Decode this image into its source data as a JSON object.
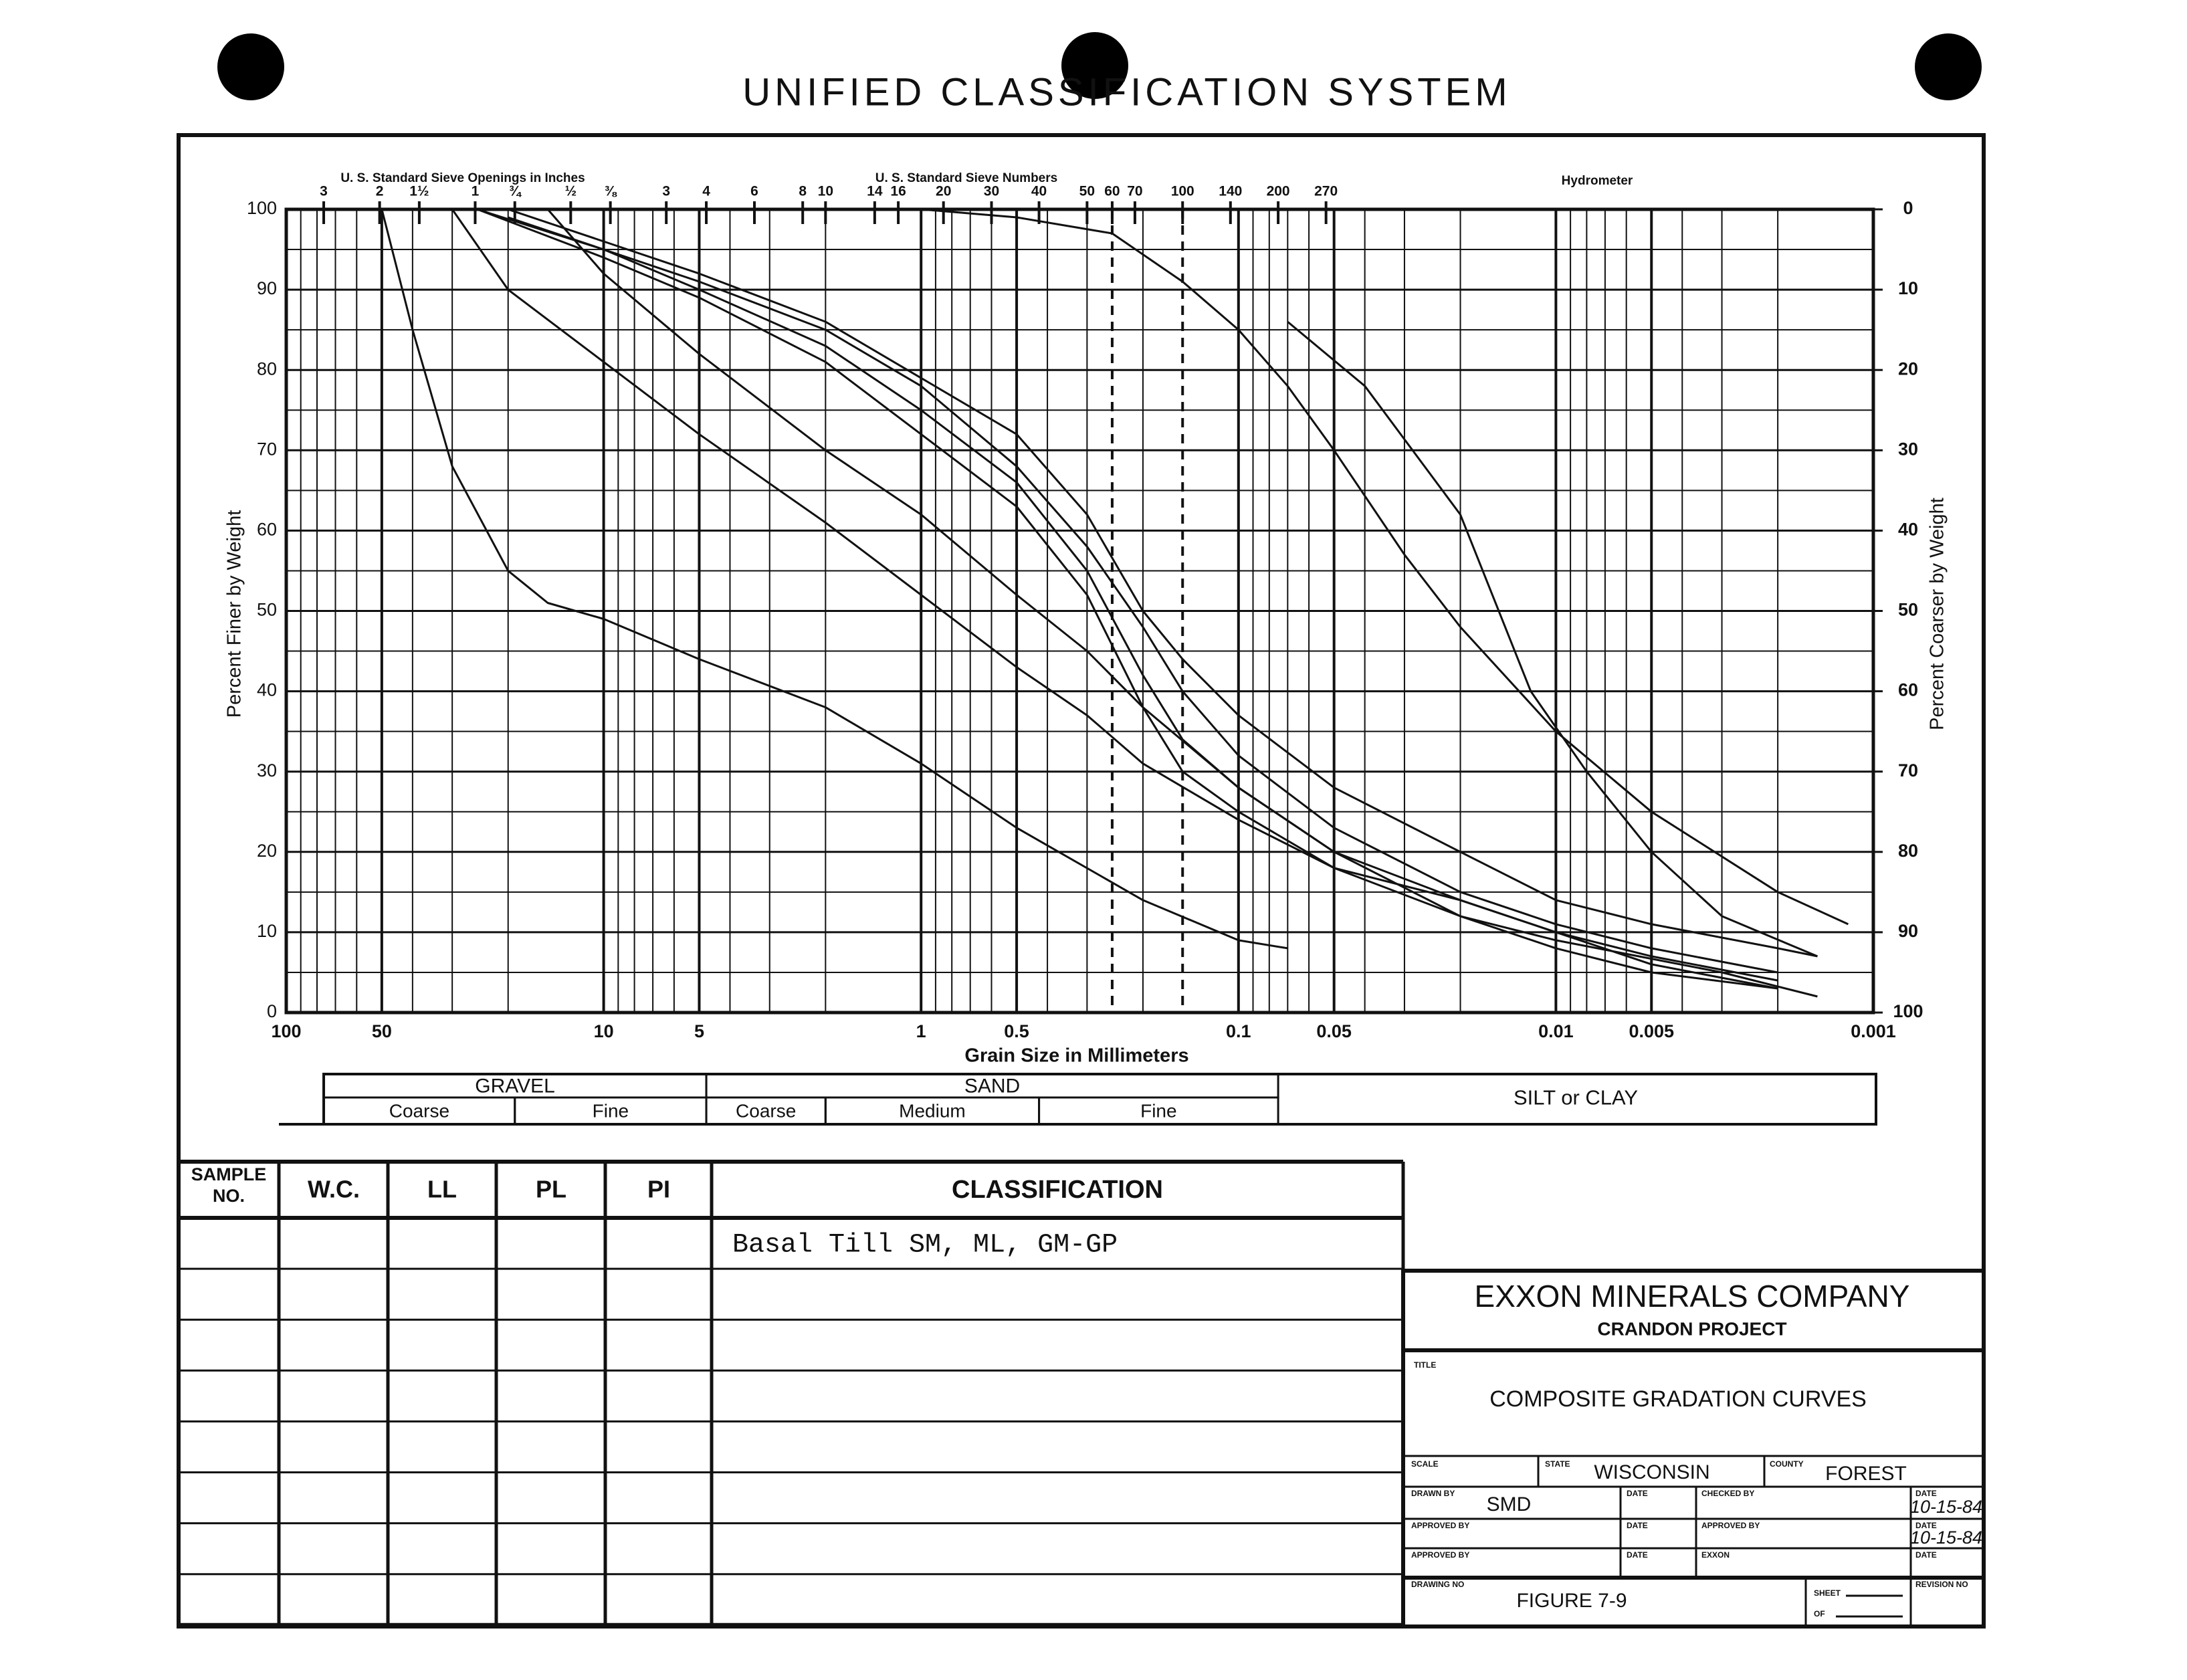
{
  "title": "UNIFIED CLASSIFICATION SYSTEM",
  "chart_data": {
    "type": "line",
    "y_label": "Percent Finer by Weight",
    "y2_label": "Percent Coarser by Weight",
    "x_label": "Grain Size in Millimeters",
    "x_log": true,
    "xlim": [
      100,
      0.001
    ],
    "xticks": [
      100,
      50,
      10,
      5,
      1,
      0.5,
      0.1,
      0.05,
      0.01,
      0.005,
      0.001
    ],
    "ylim": [
      0,
      100
    ],
    "yticks": [
      0,
      10,
      20,
      30,
      40,
      50,
      60,
      70,
      80,
      90,
      100
    ],
    "y2lim": [
      100,
      0
    ],
    "y2ticks": [
      0,
      10,
      20,
      30,
      40,
      50,
      60,
      70,
      80,
      90,
      100
    ],
    "grid": true,
    "sieve_inch_label": "U. S. Standard Sieve Openings in Inches",
    "sieve_inch_ticks": [
      {
        "value": 76.2,
        "label": "3"
      },
      {
        "value": 50.8,
        "label": "2"
      },
      {
        "value": 38.1,
        "label": "1½"
      },
      {
        "value": 25.4,
        "label": "1"
      },
      {
        "value": 19.05,
        "label": "¾"
      },
      {
        "value": 12.7,
        "label": "½"
      },
      {
        "value": 9.525,
        "label": "⅜"
      }
    ],
    "sieve_number_label": "U. S. Standard Sieve Numbers",
    "sieve_number_ticks": [
      {
        "value": 6.35,
        "label": "3"
      },
      {
        "value": 4.75,
        "label": "4"
      },
      {
        "value": 3.35,
        "label": "6"
      },
      {
        "value": 2.36,
        "label": "8"
      },
      {
        "value": 2.0,
        "label": "10"
      },
      {
        "value": 1.4,
        "label": "14"
      },
      {
        "value": 1.18,
        "label": "16"
      },
      {
        "value": 0.85,
        "label": "20"
      },
      {
        "value": 0.6,
        "label": "30"
      },
      {
        "value": 0.425,
        "label": "40"
      },
      {
        "value": 0.3,
        "label": "50"
      },
      {
        "value": 0.25,
        "label": "60"
      },
      {
        "value": 0.212,
        "label": "70"
      },
      {
        "value": 0.15,
        "label": "100"
      },
      {
        "value": 0.106,
        "label": "140"
      },
      {
        "value": 0.075,
        "label": "200"
      },
      {
        "value": 0.053,
        "label": "270"
      }
    ],
    "hydrometer_label": "Hydrometer",
    "dashed_lines": [
      0.25,
      0.15
    ],
    "band_groups": [
      {
        "label": "GRAVEL",
        "from": 76.2,
        "to": 4.75
      },
      {
        "label": "SAND",
        "from": 4.75,
        "to": 0.075
      }
    ],
    "band_parts": [
      {
        "label": "Coarse",
        "from": 76.2,
        "to": 19.05
      },
      {
        "label": "Fine",
        "from": 19.05,
        "to": 4.75
      },
      {
        "label": "Coarse",
        "from": 4.75,
        "to": 2.0
      },
      {
        "label": "Medium",
        "from": 2.0,
        "to": 0.425
      },
      {
        "label": "Fine",
        "from": 0.425,
        "to": 0.075
      }
    ],
    "fines_label": "SILT or CLAY",
    "series": [
      {
        "color": "#111111",
        "x": [
          50,
          40,
          30,
          20,
          15,
          10,
          5,
          2,
          1,
          0.5,
          0.2,
          0.1,
          0.07
        ],
        "values": [
          100,
          85,
          68,
          55,
          51,
          49,
          44,
          38,
          31,
          23,
          14,
          9,
          8
        ]
      },
      {
        "color": "#111111",
        "x": [
          30,
          20,
          10,
          5,
          2,
          1,
          0.5,
          0.3,
          0.2,
          0.1,
          0.05,
          0.02,
          0.01,
          0.005,
          0.002
        ],
        "values": [
          100,
          90,
          81,
          72,
          61,
          52,
          43,
          37,
          31,
          24,
          18,
          14,
          10,
          6,
          3
        ]
      },
      {
        "color": "#111111",
        "x": [
          3,
          1,
          0.5,
          0.25,
          0.15,
          0.1,
          0.07,
          0.05,
          0.03,
          0.02,
          0.01,
          0.005,
          0.002,
          0.0012
        ],
        "values": [
          100,
          100,
          99,
          97,
          91,
          85,
          78,
          70,
          57,
          48,
          35,
          25,
          15,
          11
        ]
      },
      {
        "color": "#111111",
        "x": [
          0.07,
          0.04,
          0.02,
          0.012,
          0.008,
          0.005,
          0.003,
          0.0015
        ],
        "values": [
          86,
          78,
          62,
          40,
          30,
          20,
          12,
          7
        ]
      },
      {
        "color": "#111111",
        "x": [
          25,
          10,
          5,
          2,
          1,
          0.5,
          0.3,
          0.2,
          0.15,
          0.1,
          0.05,
          0.02,
          0.01,
          0.005,
          0.002
        ],
        "values": [
          100,
          95,
          91,
          85,
          78,
          68,
          58,
          48,
          40,
          32,
          23,
          15,
          11,
          8,
          5
        ]
      },
      {
        "color": "#111111",
        "x": [
          20,
          10,
          5,
          2,
          1,
          0.5,
          0.3,
          0.2,
          0.15,
          0.1,
          0.05,
          0.02,
          0.01,
          0.005,
          0.002
        ],
        "values": [
          99,
          95,
          90,
          83,
          75,
          66,
          55,
          42,
          34,
          28,
          20,
          14,
          10,
          7,
          4
        ]
      },
      {
        "color": "#111111",
        "x": [
          25,
          10,
          5,
          2,
          1,
          0.5,
          0.3,
          0.2,
          0.15,
          0.1,
          0.05,
          0.02,
          0.01,
          0.003,
          0.0015
        ],
        "values": [
          100,
          94,
          89,
          81,
          72,
          63,
          52,
          38,
          30,
          25,
          18,
          12,
          9,
          5,
          2
        ]
      },
      {
        "color": "#111111",
        "x": [
          15,
          10,
          5,
          2,
          1,
          0.5,
          0.3,
          0.2,
          0.1,
          0.05,
          0.02,
          0.01,
          0.005,
          0.002
        ],
        "values": [
          100,
          92,
          82,
          70,
          62,
          52,
          45,
          38,
          28,
          20,
          12,
          8,
          5,
          3
        ]
      },
      {
        "color": "#111111",
        "x": [
          20,
          10,
          5,
          2,
          1,
          0.5,
          0.3,
          0.2,
          0.15,
          0.1,
          0.05,
          0.02,
          0.01,
          0.005,
          0.002,
          0.0015
        ],
        "values": [
          100,
          96,
          92,
          86,
          79,
          72,
          62,
          50,
          44,
          37,
          28,
          20,
          14,
          11,
          8,
          7
        ]
      }
    ]
  },
  "table": {
    "header": [
      [
        "SAMPLE",
        "NO."
      ],
      "W.C.",
      "LL",
      "PL",
      "PI",
      "CLASSIFICATION"
    ],
    "rows": [
      {
        "classification": "Basal Till SM, ML, GM-GP"
      }
    ]
  },
  "title_block": {
    "company": "EXXON MINERALS COMPANY",
    "project": "CRANDON PROJECT",
    "title_label": "TITLE",
    "title": "COMPOSITE GRADATION CURVES",
    "scale_label": "SCALE",
    "state_label": "STATE",
    "state": "WISCONSIN",
    "county_label": "COUNTY",
    "county": "FOREST",
    "drawn_by_label": "DRAWN BY",
    "drawn_by": "SMD",
    "date_label": "DATE",
    "checked_by_label": "CHECKED BY",
    "checked_date": "10-15-84",
    "approved_by_label": "APPROVED BY",
    "approved_date": "10-15-84",
    "exxon_label": "EXXON",
    "drawing_no_label": "DRAWING NO",
    "drawing_no": "FIGURE 7-9",
    "sheet_label": "SHEET",
    "of_label": "OF",
    "revision_label": "REVISION NO"
  }
}
